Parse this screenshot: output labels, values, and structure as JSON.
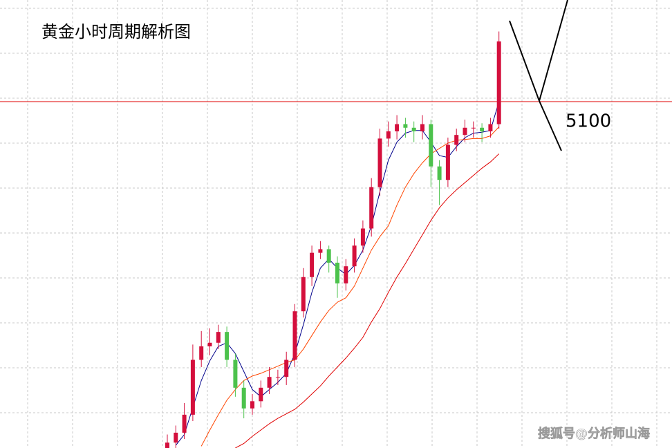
{
  "chart_data": {
    "type": "candlestick",
    "title": "黄金小时周期解析图",
    "categories": [
      null,
      null,
      null,
      null,
      null,
      null,
      null,
      null,
      null,
      null,
      null,
      null,
      null,
      null,
      null,
      null,
      null,
      null,
      null,
      null,
      null,
      null,
      null,
      null,
      null,
      null,
      null,
      null,
      null,
      null,
      null,
      null,
      null,
      null,
      null,
      null,
      null,
      null,
      null,
      null
    ],
    "open": [
      4712,
      4721,
      4732,
      4752,
      4813,
      4828,
      4832,
      4844,
      4813,
      4782,
      4759,
      4767,
      4782,
      4794,
      4794,
      4813,
      4867,
      4905,
      4932,
      4936,
      4921,
      4898,
      4917,
      4940,
      4959,
      5005,
      5059,
      5067,
      5075,
      5071,
      5067,
      5075,
      5028,
      5013,
      5052,
      5063,
      5071,
      5071,
      5067,
      5075
    ],
    "high": [
      4730,
      4740,
      4765,
      4830,
      4845,
      4848,
      4852,
      4850,
      4820,
      4790,
      4775,
      4790,
      4805,
      4802,
      4822,
      4875,
      4915,
      4940,
      4945,
      4940,
      4928,
      4925,
      4948,
      4968,
      5015,
      5070,
      5078,
      5085,
      5082,
      5078,
      5085,
      5080,
      5035,
      5060,
      5070,
      5080,
      5078,
      5076,
      5082,
      5178
    ],
    "low": [
      4700,
      4712,
      4725,
      4745,
      4805,
      4818,
      4825,
      4805,
      4772,
      4748,
      4752,
      4760,
      4775,
      4785,
      4785,
      4805,
      4860,
      4895,
      4925,
      4910,
      4882,
      4890,
      4910,
      4932,
      4950,
      4995,
      5050,
      5058,
      5060,
      5055,
      5058,
      5005,
      4985,
      5005,
      5045,
      5055,
      5060,
      5055,
      5060,
      5070
    ],
    "close": [
      4721,
      4732,
      4752,
      4813,
      4828,
      4832,
      4844,
      4813,
      4782,
      4759,
      4767,
      4782,
      4794,
      4794,
      4813,
      4867,
      4905,
      4932,
      4936,
      4921,
      4898,
      4917,
      4940,
      4959,
      5005,
      5059,
      5067,
      5075,
      5071,
      5067,
      5075,
      5028,
      5013,
      5052,
      5063,
      5071,
      5071,
      5067,
      5075,
      5167
    ],
    "up_color": "#d40f3c",
    "down_color": "#4cc24c",
    "series": [
      {
        "color": "#00008b",
        "values": [
          null,
          4718,
          4730,
          4760,
          4790,
          4812,
          4828,
          4832,
          4820,
          4800,
          4780,
          4772,
          4780,
          4788,
          4798,
          4820,
          4852,
          4888,
          4915,
          4925,
          4915,
          4908,
          4918,
          4935,
          4962,
          5000,
          5035,
          5055,
          5065,
          5068,
          5068,
          5055,
          5040,
          5038,
          5050,
          5060,
          5065,
          5066,
          5068,
          5100
        ]
      },
      {
        "color": "#ff4500",
        "values": [
          null,
          null,
          null,
          null,
          4717,
          4735,
          4752,
          4768,
          4780,
          4790,
          4795,
          4798,
          4802,
          4806,
          4810,
          4813,
          4825,
          4840,
          4855,
          4868,
          4877,
          4882,
          4895,
          4915,
          4935,
          4950,
          4962,
          4985,
          5005,
          5020,
          5032,
          5042,
          5048,
          5054,
          5057,
          5058,
          5059,
          5059,
          5062,
          5072
        ]
      },
      {
        "color": "#e00000",
        "values": [
          null,
          null,
          null,
          null,
          null,
          null,
          null,
          null,
          4715,
          4720,
          4728,
          4735,
          4742,
          4748,
          4753,
          4758,
          4766,
          4775,
          4784,
          4795,
          4805,
          4815,
          4826,
          4838,
          4855,
          4870,
          4888,
          4905,
          4920,
          4936,
          4952,
          4968,
          4982,
          4993,
          5002,
          5010,
          5018,
          5026,
          5033,
          5042
        ]
      }
    ],
    "ylim": [
      4715,
      5213
    ],
    "level": 5100,
    "level_color": "#e00000",
    "watermark": "搜狐号@分析师山海"
  }
}
